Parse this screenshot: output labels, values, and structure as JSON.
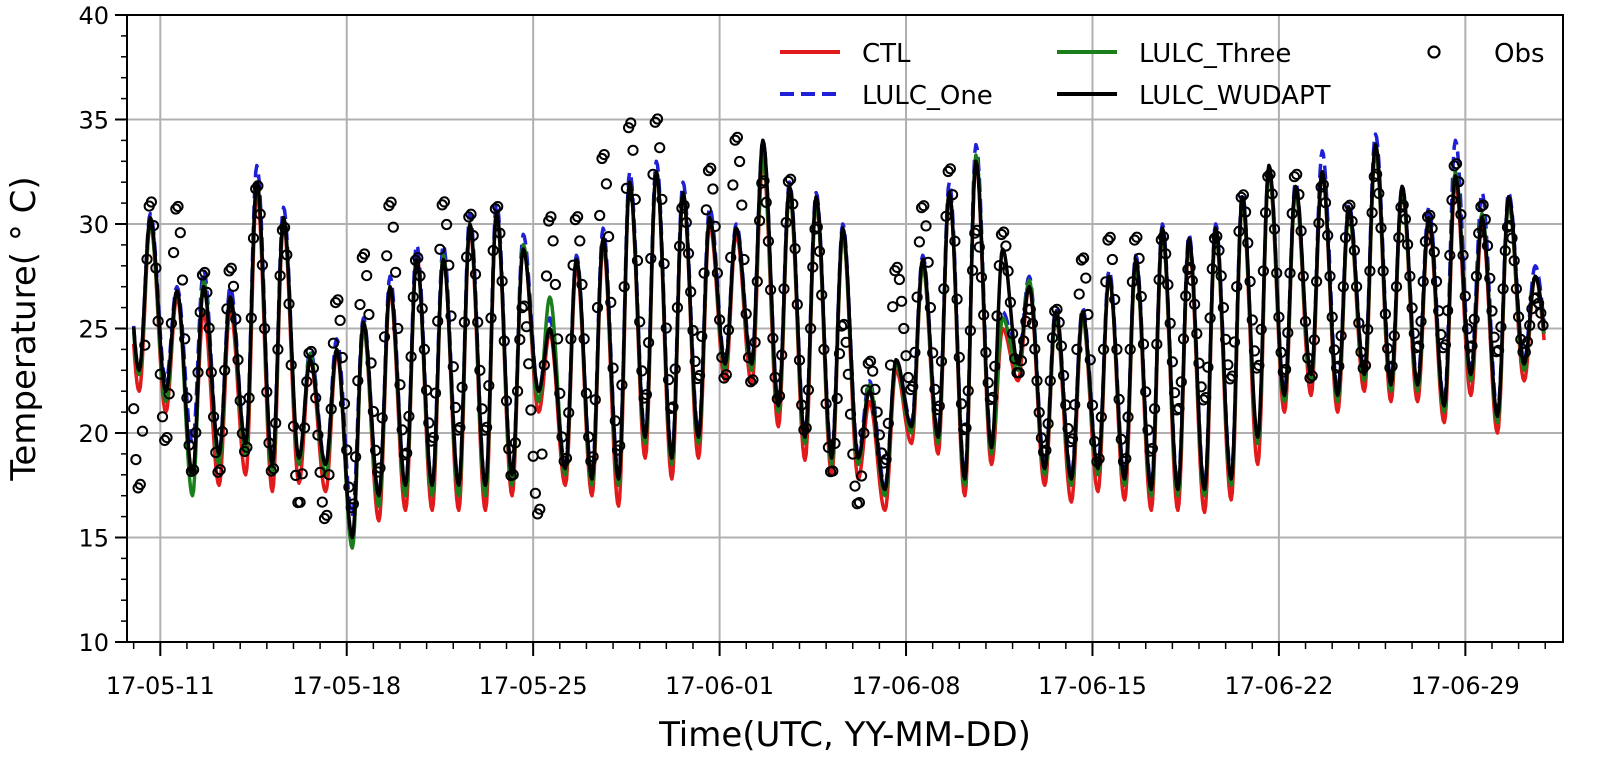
{
  "chart_data": {
    "type": "line",
    "title": "",
    "xlabel": "Time(UTC, YY-MM-DD)",
    "ylabel": "Temperature( ° C)",
    "ylim": [
      10,
      40
    ],
    "xlim": [
      "2017-05-09T18:00",
      "2017-07-02T16:00"
    ],
    "yticks": [
      10,
      15,
      20,
      25,
      30,
      35,
      40
    ],
    "xticks": [
      {
        "date": "2017-05-11",
        "label": "17-05-11"
      },
      {
        "date": "2017-05-18",
        "label": "17-05-18"
      },
      {
        "date": "2017-05-25",
        "label": "17-05-25"
      },
      {
        "date": "2017-06-01",
        "label": "17-06-01"
      },
      {
        "date": "2017-06-08",
        "label": "17-06-08"
      },
      {
        "date": "2017-06-15",
        "label": "17-06-15"
      },
      {
        "date": "2017-06-22",
        "label": "17-06-22"
      },
      {
        "date": "2017-06-29",
        "label": "17-06-29"
      }
    ],
    "grid": true,
    "legend_position": "top-right",
    "daily": {
      "dates": [
        "2017-05-10",
        "2017-05-11",
        "2017-05-12",
        "2017-05-13",
        "2017-05-14",
        "2017-05-15",
        "2017-05-16",
        "2017-05-17",
        "2017-05-18",
        "2017-05-19",
        "2017-05-20",
        "2017-05-21",
        "2017-05-22",
        "2017-05-23",
        "2017-05-24",
        "2017-05-25",
        "2017-05-26",
        "2017-05-27",
        "2017-05-28",
        "2017-05-29",
        "2017-05-30",
        "2017-05-31",
        "2017-06-01",
        "2017-06-02",
        "2017-06-03",
        "2017-06-04",
        "2017-06-05",
        "2017-06-06",
        "2017-06-07",
        "2017-06-08",
        "2017-06-09",
        "2017-06-10",
        "2017-06-11",
        "2017-06-12",
        "2017-06-13",
        "2017-06-14",
        "2017-06-15",
        "2017-06-16",
        "2017-06-17",
        "2017-06-18",
        "2017-06-19",
        "2017-06-20",
        "2017-06-21",
        "2017-06-22",
        "2017-06-23",
        "2017-06-24",
        "2017-06-25",
        "2017-06-26",
        "2017-06-27",
        "2017-06-28",
        "2017-06-29",
        "2017-06-30",
        "2017-07-01"
      ],
      "series": [
        {
          "name": "CTL",
          "color": "#e31a1c",
          "style": "solid",
          "daily_min": [
            22.0,
            21.0,
            18.0,
            17.5,
            18.0,
            17.2,
            17.6,
            17.2,
            14.8,
            15.8,
            16.3,
            16.3,
            16.3,
            16.3,
            17.0,
            21.0,
            17.5,
            17.0,
            16.5,
            18.8,
            17.8,
            18.8,
            22.5,
            22.3,
            20.3,
            18.7,
            18.0,
            17.8,
            16.3,
            19.5,
            19.0,
            17.0,
            18.5,
            22.5,
            17.5,
            16.7,
            17.2,
            16.8,
            16.3,
            16.3,
            16.2,
            16.8,
            18.5,
            21.0,
            21.8,
            21.0,
            22.0,
            21.5,
            21.5,
            20.5,
            21.8,
            20.0,
            22.5
          ],
          "daily_max": [
            30.0,
            26.5,
            25.8,
            26.0,
            31.5,
            30.0,
            23.5,
            23.8,
            25.0,
            26.8,
            28.5,
            28.5,
            29.8,
            30.5,
            29.0,
            24.8,
            28.0,
            29.0,
            32.0,
            32.5,
            31.5,
            30.0,
            29.5,
            33.0,
            31.5,
            31.0,
            29.5,
            21.5,
            23.0,
            28.0,
            31.5,
            33.0,
            25.0,
            27.0,
            25.5,
            25.5,
            27.5,
            28.0,
            29.5,
            29.0,
            29.5,
            31.0,
            32.5,
            31.5,
            32.5,
            30.5,
            33.5,
            31.5,
            30.0,
            32.0,
            30.0,
            31.0,
            27.5
          ]
        },
        {
          "name": "LULC_One",
          "color": "#1f1fd6",
          "style": "dashed",
          "daily_min": [
            23.0,
            22.5,
            19.5,
            19.0,
            19.5,
            18.5,
            18.5,
            18.5,
            16.0,
            17.0,
            17.5,
            17.5,
            17.5,
            17.5,
            18.0,
            22.0,
            18.5,
            18.0,
            18.0,
            20.0,
            19.0,
            20.0,
            23.5,
            23.5,
            21.5,
            20.0,
            19.0,
            19.0,
            17.5,
            20.5,
            20.0,
            18.0,
            19.5,
            23.5,
            18.5,
            18.0,
            18.5,
            18.0,
            17.5,
            17.5,
            17.5,
            18.0,
            19.5,
            22.0,
            22.5,
            22.0,
            23.0,
            22.5,
            22.5,
            21.5,
            23.0,
            21.0,
            23.5
          ],
          "daily_max": [
            30.5,
            27.0,
            27.8,
            27.0,
            32.8,
            30.8,
            24.0,
            24.5,
            25.5,
            27.5,
            29.0,
            29.0,
            30.5,
            31.0,
            29.5,
            25.5,
            28.5,
            29.8,
            32.5,
            33.0,
            32.0,
            30.8,
            30.0,
            34.0,
            32.0,
            31.5,
            30.0,
            22.5,
            23.5,
            28.5,
            32.0,
            33.8,
            25.8,
            27.5,
            26.0,
            26.0,
            27.8,
            28.5,
            30.0,
            29.5,
            30.0,
            31.5,
            32.8,
            32.0,
            33.5,
            31.0,
            34.3,
            31.8,
            30.8,
            34.0,
            31.5,
            31.5,
            28.0
          ]
        },
        {
          "name": "LULC_Three",
          "color": "#1a7f1a",
          "style": "solid",
          "daily_min": [
            22.8,
            21.5,
            17.0,
            18.5,
            19.0,
            18.0,
            18.5,
            18.0,
            14.5,
            16.5,
            17.0,
            17.0,
            17.0,
            17.0,
            17.5,
            21.5,
            18.0,
            17.5,
            17.5,
            19.5,
            18.5,
            19.5,
            23.0,
            23.0,
            21.0,
            19.5,
            18.5,
            18.5,
            17.0,
            20.0,
            19.5,
            17.5,
            19.0,
            23.0,
            18.0,
            17.5,
            18.0,
            17.5,
            17.0,
            17.0,
            17.0,
            17.5,
            19.5,
            21.5,
            22.5,
            21.5,
            22.5,
            22.0,
            22.0,
            21.0,
            22.5,
            20.5,
            23.0
          ],
          "daily_max": [
            30.0,
            26.8,
            27.3,
            26.5,
            32.0,
            30.2,
            23.8,
            24.0,
            25.0,
            27.0,
            28.3,
            28.5,
            30.0,
            30.5,
            29.0,
            26.5,
            28.3,
            29.3,
            32.0,
            32.5,
            31.5,
            30.3,
            29.8,
            33.3,
            31.5,
            31.0,
            29.5,
            22.3,
            23.3,
            28.0,
            31.5,
            33.3,
            25.5,
            27.3,
            25.5,
            25.5,
            27.5,
            28.0,
            29.5,
            29.2,
            29.5,
            31.0,
            32.5,
            31.5,
            32.5,
            30.5,
            33.5,
            31.5,
            30.3,
            32.5,
            30.5,
            31.0,
            27.5
          ]
        },
        {
          "name": "LULC_WUDAPT",
          "color": "#000000",
          "style": "solid",
          "daily_min": [
            23.0,
            22.0,
            18.0,
            19.0,
            19.5,
            18.5,
            18.8,
            18.5,
            15.0,
            17.0,
            17.5,
            17.5,
            17.5,
            17.5,
            18.0,
            22.0,
            18.3,
            17.8,
            17.8,
            19.8,
            18.8,
            19.8,
            23.3,
            23.3,
            21.3,
            19.8,
            18.8,
            18.8,
            17.3,
            20.3,
            19.8,
            17.8,
            19.3,
            23.3,
            18.3,
            17.8,
            18.3,
            17.8,
            17.3,
            17.3,
            17.3,
            17.8,
            19.8,
            21.8,
            22.8,
            21.8,
            22.8,
            22.3,
            22.3,
            21.3,
            22.8,
            20.8,
            23.3
          ],
          "daily_max": [
            30.3,
            26.8,
            27.0,
            26.5,
            32.0,
            30.3,
            23.5,
            24.0,
            25.3,
            27.0,
            28.3,
            28.3,
            30.0,
            30.5,
            28.8,
            25.0,
            28.3,
            29.3,
            32.0,
            32.5,
            31.5,
            30.3,
            29.8,
            34.0,
            31.8,
            31.3,
            29.8,
            22.0,
            23.5,
            28.3,
            31.5,
            33.0,
            28.8,
            27.0,
            25.8,
            25.8,
            27.5,
            28.3,
            29.8,
            29.3,
            29.8,
            31.3,
            32.8,
            31.8,
            32.5,
            30.8,
            33.8,
            31.8,
            30.3,
            32.3,
            30.3,
            31.3,
            27.5
          ]
        },
        {
          "name": "Obs",
          "color": "#000000",
          "style": "markers",
          "daily_min": [
            17.2,
            19.5,
            18.0,
            18.0,
            19.0,
            18.0,
            16.5,
            15.8,
            16.3,
            18.0,
            18.8,
            19.5,
            20.0,
            20.0,
            17.8,
            16.0,
            18.5,
            18.5,
            19.0,
            21.5,
            21.0,
            22.5,
            22.5,
            22.3,
            21.5,
            20.0,
            18.0,
            16.5,
            18.5,
            22.0,
            21.0,
            20.0,
            21.5,
            22.8,
            19.0,
            19.5,
            18.5,
            18.5,
            19.0,
            21.0,
            21.5,
            22.5,
            23.0,
            22.8,
            22.5,
            23.0,
            23.0,
            23.0,
            24.0,
            24.0,
            24.0,
            23.8,
            23.8
          ],
          "daily_max": [
            31.2,
            31.0,
            27.8,
            28.0,
            32.0,
            30.0,
            24.0,
            26.5,
            28.7,
            31.2,
            28.5,
            31.2,
            30.6,
            31.0,
            26.2,
            30.5,
            30.5,
            33.5,
            35.0,
            35.2,
            31.0,
            32.8,
            34.3,
            32.2,
            32.3,
            30.0,
            25.3,
            23.5,
            28.0,
            31.0,
            32.8,
            29.8,
            29.7,
            26.0,
            26.0,
            28.5,
            29.5,
            29.5,
            29.5,
            28.0,
            29.5,
            31.5,
            32.5,
            32.5,
            32.0,
            31.0,
            32.5,
            31.0,
            30.5,
            33.0,
            31.0,
            30.0,
            26.5
          ]
        }
      ]
    }
  }
}
